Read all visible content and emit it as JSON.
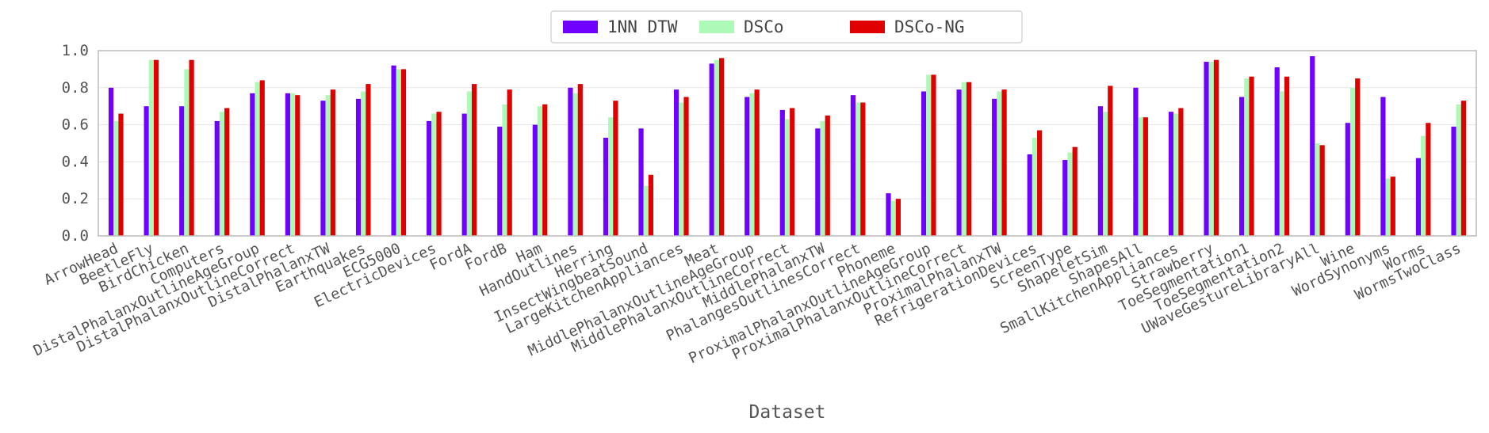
{
  "chart_data": {
    "type": "bar",
    "title": "",
    "xlabel": "Dataset",
    "ylabel": "",
    "ylim": [
      0,
      1.0
    ],
    "yticks": [
      "0.0",
      "0.2",
      "0.4",
      "0.6",
      "0.8",
      "1.0"
    ],
    "legend_position": "top-center",
    "categories": [
      "ArrowHead",
      "BeetleFly",
      "BirdChicken",
      "Computers",
      "DistalPhalanxOutlineAgeGroup",
      "DistalPhalanxOutlineCorrect",
      "DistalPhalanxTW",
      "Earthquakes",
      "ECG5000",
      "ElectricDevices",
      "FordA",
      "FordB",
      "Ham",
      "HandOutlines",
      "Herring",
      "InsectWingbeatSound",
      "LargeKitchenAppliances",
      "Meat",
      "MiddlePhalanxOutlineAgeGroup",
      "MiddlePhalanxOutlineCorrect",
      "MiddlePhalanxTW",
      "PhalangesOutlinesCorrect",
      "Phoneme",
      "ProximalPhalanxOutlineAgeGroup",
      "ProximalPhalanxOutlineCorrect",
      "ProximalPhalanxTW",
      "RefrigerationDevices",
      "ScreenType",
      "ShapeletSim",
      "ShapesAll",
      "SmallKitchenAppliances",
      "Strawberry",
      "ToeSegmentation1",
      "ToeSegmentation2",
      "UWaveGestureLibraryAll",
      "Wine",
      "WordSynonyms",
      "Worms",
      "WormsTwoClass"
    ],
    "series": [
      {
        "name": "1NN DTW",
        "color": "#7000ff",
        "values": [
          0.8,
          0.7,
          0.7,
          0.62,
          0.77,
          0.77,
          0.73,
          0.74,
          0.92,
          0.62,
          0.66,
          0.59,
          0.6,
          0.8,
          0.53,
          0.58,
          0.79,
          0.93,
          0.75,
          0.68,
          0.58,
          0.76,
          0.23,
          0.78,
          0.79,
          0.74,
          0.44,
          0.41,
          0.7,
          0.8,
          0.67,
          0.94,
          0.75,
          0.91,
          0.97,
          0.61,
          0.75,
          0.42,
          0.59
        ]
      },
      {
        "name": "DSCo",
        "color": "#adfab8",
        "values": [
          0.62,
          0.95,
          0.9,
          0.67,
          0.83,
          0.77,
          0.76,
          0.78,
          0.9,
          0.66,
          0.78,
          0.71,
          0.7,
          0.77,
          0.64,
          0.27,
          0.72,
          0.95,
          0.77,
          0.63,
          0.62,
          0.72,
          0.19,
          0.87,
          0.83,
          0.78,
          0.53,
          0.45,
          0.67,
          0.64,
          0.66,
          0.94,
          0.85,
          0.78,
          0.5,
          0.8,
          0.31,
          0.54,
          0.71
        ]
      },
      {
        "name": "DSCo-NG",
        "color": "#e00000",
        "values": [
          0.66,
          0.95,
          0.95,
          0.69,
          0.84,
          0.76,
          0.79,
          0.82,
          0.9,
          0.67,
          0.82,
          0.79,
          0.71,
          0.82,
          0.73,
          0.33,
          0.75,
          0.96,
          0.79,
          0.69,
          0.65,
          0.72,
          0.2,
          0.87,
          0.83,
          0.79,
          0.57,
          0.48,
          0.81,
          0.64,
          0.69,
          0.95,
          0.86,
          0.86,
          0.49,
          0.85,
          0.32,
          0.61,
          0.73
        ]
      }
    ]
  }
}
